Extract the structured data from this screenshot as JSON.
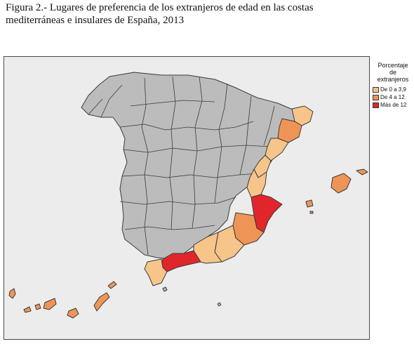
{
  "figure": {
    "caption_line1": "Figura 2.- Lugares de preferencia de los extranjeros de edad en las costas",
    "caption_line2": "mediterráneas e insulares de España, 2013"
  },
  "legend": {
    "title_line1": "Porcentaje",
    "title_line2": "de",
    "title_line3": "extranjeros",
    "items": [
      {
        "label": "De 0 a 3,9",
        "color": "#f7c48a"
      },
      {
        "label": "De 4 a 12",
        "color": "#ef9457"
      },
      {
        "label": "Más de 12",
        "color": "#e0262b"
      }
    ]
  },
  "colors": {
    "no_data": "#bcbcbc",
    "background": "#ececec",
    "border": "#3a3a3a"
  }
}
